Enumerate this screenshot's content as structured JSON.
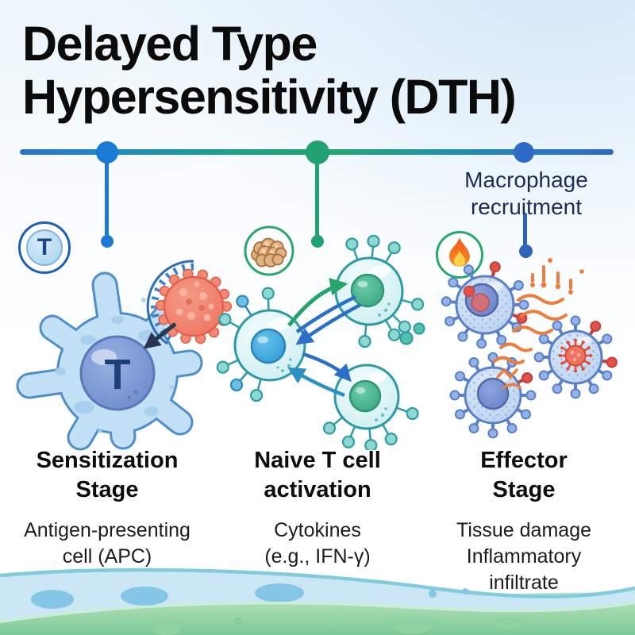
{
  "page": {
    "title_line1": "Delayed Type",
    "title_line2": "Hypersensitivity (DTH)"
  },
  "timeline": {
    "marker_colors": [
      "#1a7ad4",
      "#22a173",
      "#2d6cc6"
    ],
    "annotation_line1": "Macrophage",
    "annotation_line2": "recruitment"
  },
  "badges": {
    "naive_t_cell_label": "T",
    "icons": [
      "naive-t-cell-icon",
      "antigen-cluster-icon",
      "inflammation-flame-icon"
    ]
  },
  "apc": {
    "nucleus_label": "T"
  },
  "stages": [
    {
      "title_line1": "Sensitization",
      "title_line2": "Stage",
      "subtitle_lines": [
        "Antigen-presenting",
        "cell (APC)"
      ]
    },
    {
      "title_line1": "Naive T cell",
      "title_line2": "activation",
      "subtitle_lines": [
        "Cytokines",
        "(e.g., IFN-γ)"
      ]
    },
    {
      "title_line1": "Effector",
      "title_line2": "Stage",
      "subtitle_lines": [
        "Tissue damage",
        "Inflammatory",
        "infiltrate"
      ]
    }
  ],
  "colors": {
    "timeline_blue": "#1a7ad4",
    "timeline_green": "#22a173",
    "annotation_text": "#1c2c55",
    "title_text": "#0b0b0b",
    "antigen_red": "#ee7663",
    "cell_blue": "#c2e0f6",
    "tcell_teal": "#d2eff1",
    "macrophage_blue": "#c5d9f2",
    "signal_orange": "#ee7c3c"
  }
}
